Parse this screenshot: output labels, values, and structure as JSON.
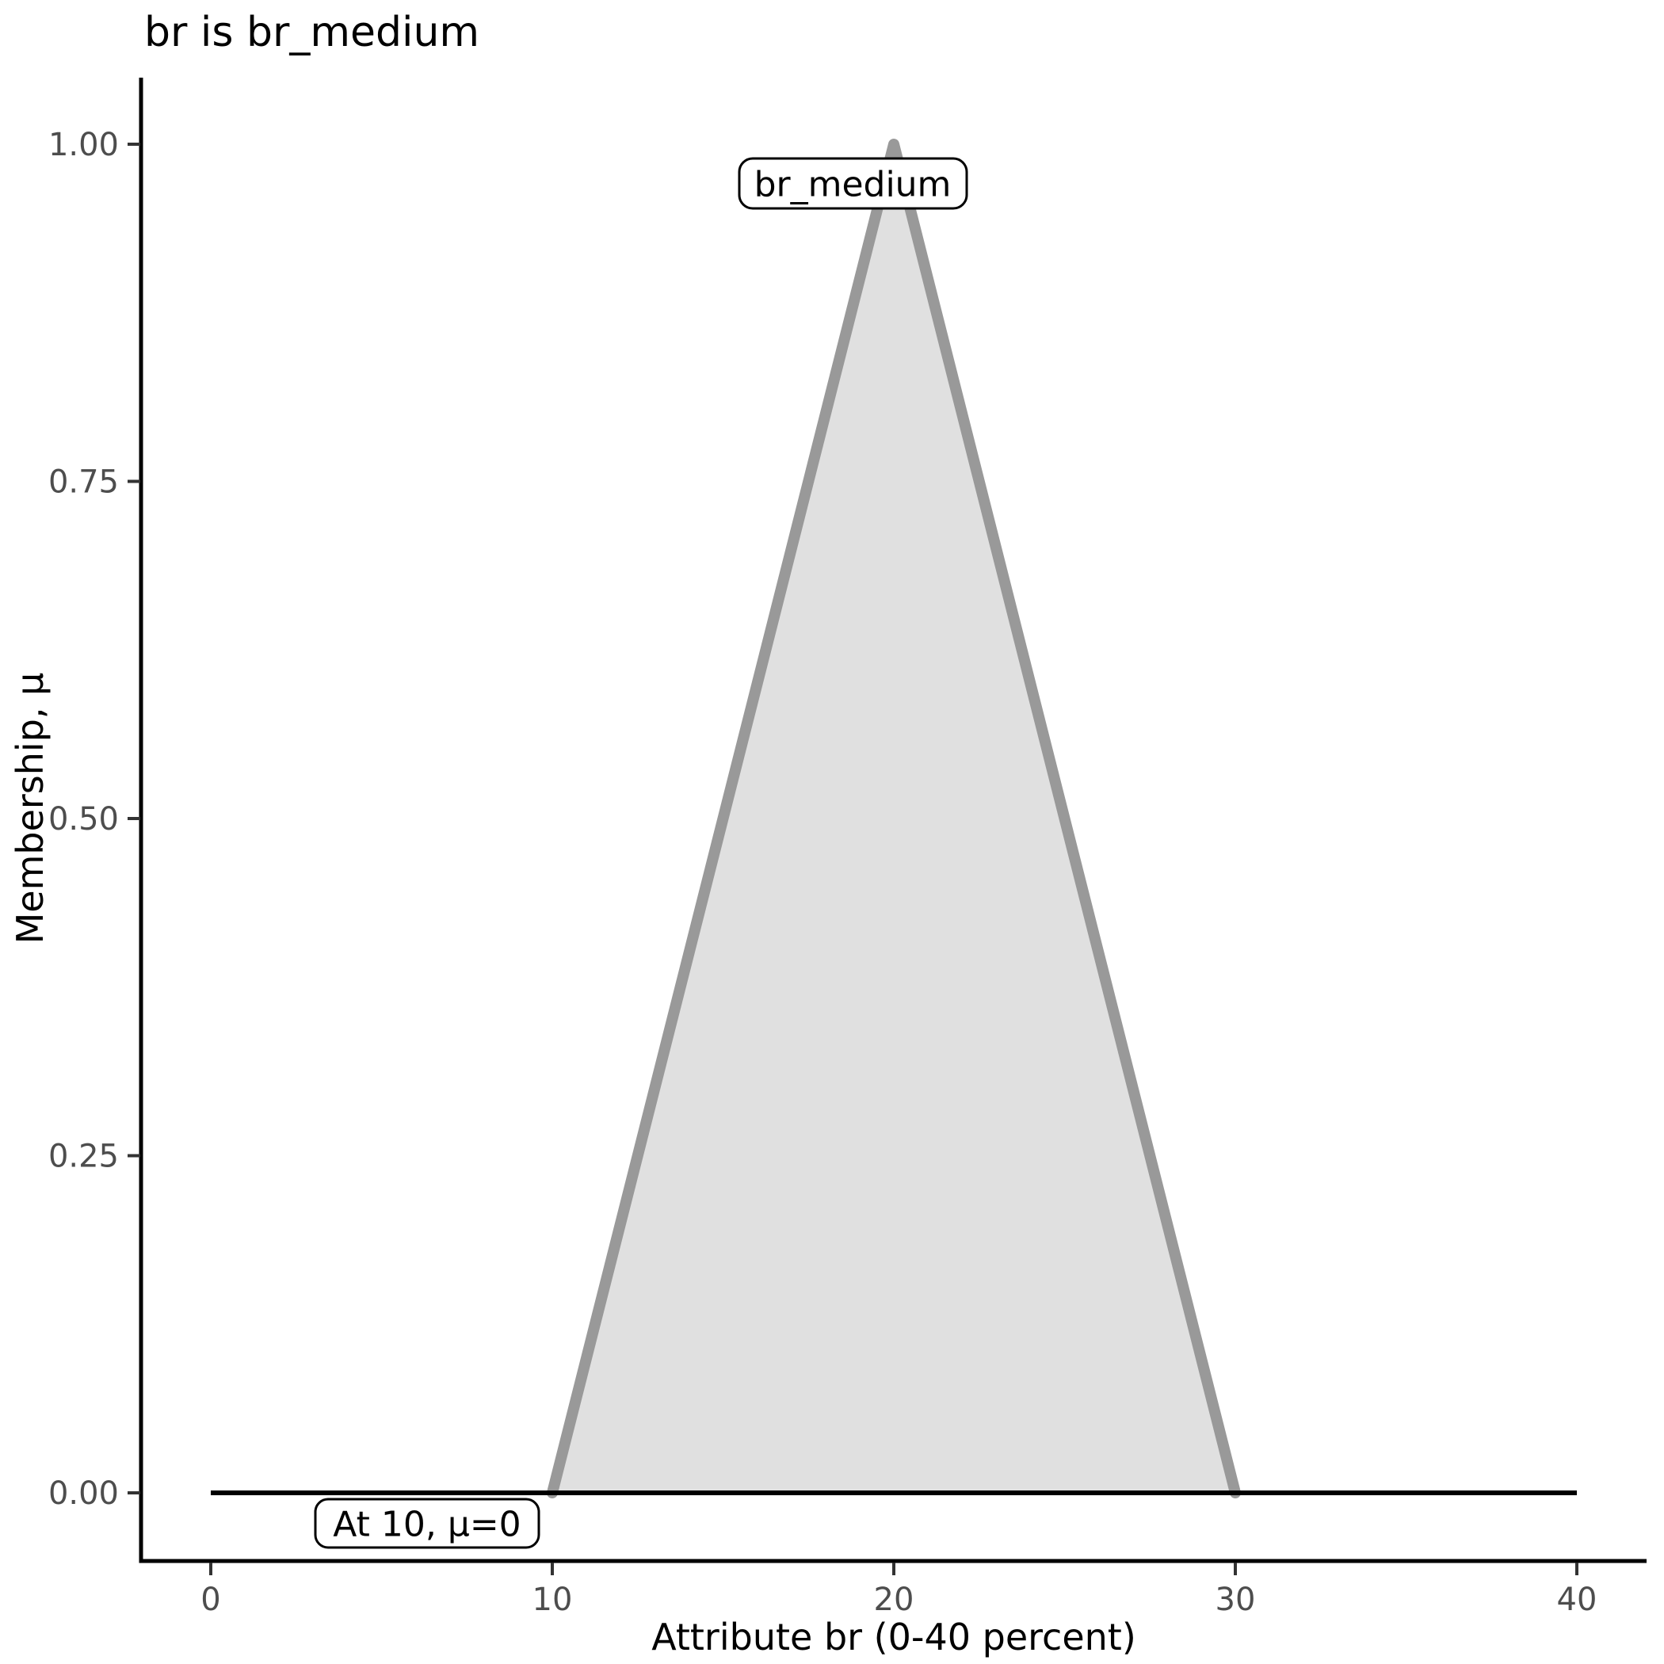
{
  "title": "br is br_medium",
  "chart_data": {
    "type": "area",
    "title": "br is br_medium",
    "xlabel": "Attribute br (0-40 percent)",
    "ylabel": "Membership, μ",
    "xlim": [
      0,
      40
    ],
    "ylim": [
      0,
      1
    ],
    "grid": false,
    "legend": "none",
    "x_ticks": [
      {
        "value": 0,
        "label": "0"
      },
      {
        "value": 10,
        "label": "10"
      },
      {
        "value": 20,
        "label": "20"
      },
      {
        "value": 30,
        "label": "30"
      },
      {
        "value": 40,
        "label": "40"
      }
    ],
    "y_ticks": [
      {
        "value": 1,
        "label": "1.00"
      },
      {
        "value": 0.75,
        "label": "0.75"
      },
      {
        "value": 0.5,
        "label": "0.50"
      },
      {
        "value": 0.25,
        "label": "0.25"
      },
      {
        "value": 0,
        "label": "0.00"
      }
    ],
    "series": [
      {
        "name": "br_medium membership function",
        "shape": "triangle",
        "filled": true,
        "points": [
          [
            10,
            0
          ],
          [
            20,
            1
          ],
          [
            30,
            0
          ]
        ],
        "stroke": "#999999",
        "fill": "#e0e0e0"
      },
      {
        "name": "zero membership baseline",
        "shape": "line",
        "filled": false,
        "points": [
          [
            0,
            0
          ],
          [
            40,
            0
          ]
        ],
        "stroke": "#000000",
        "fill": "none"
      }
    ],
    "annotations": [
      {
        "text": "br_medium",
        "anchor_x": 20,
        "anchor_y": 1
      },
      {
        "text": "At 10, μ=0",
        "anchor_x": 10,
        "anchor_y": 0
      }
    ]
  },
  "colors": {
    "background": "#ffffff",
    "axis_line": "#000000",
    "tick_mark": "#333333",
    "tick_label": "#4d4d4d",
    "title_text": "#000000",
    "membership_stroke": "#999999",
    "membership_fill": "#e0e0e0",
    "baseline": "#000000",
    "annotation_box_bg": "#ffffff",
    "annotation_box_border": "#000000"
  }
}
